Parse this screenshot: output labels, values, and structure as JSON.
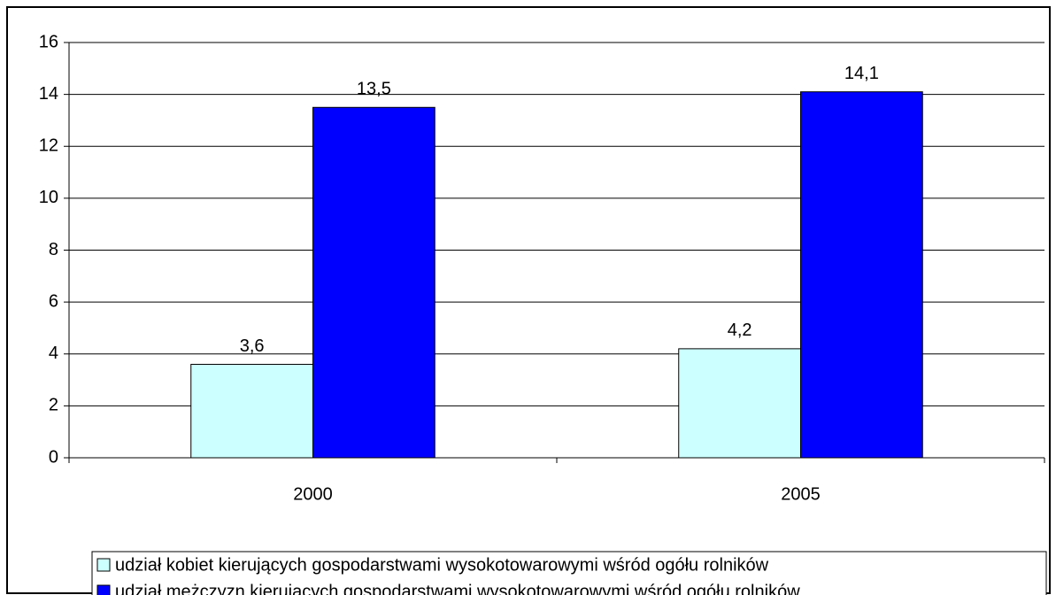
{
  "chart_data": {
    "type": "bar",
    "categories": [
      "2000",
      "2005"
    ],
    "series": [
      {
        "name": "udział kobiet kierujących gospodarstwami wysokotowarowymi wśród ogółu rolników",
        "color": "#ccffff",
        "values": [
          3.6,
          4.2
        ],
        "value_labels": [
          "3,6",
          "4,2"
        ]
      },
      {
        "name": "udział mężczyzn kierujących gospodarstwami wysokotowarowymi wśród ogółu rolników",
        "color": "#0000ff",
        "values": [
          13.5,
          14.1
        ],
        "value_labels": [
          "13,5",
          "14,1"
        ]
      }
    ],
    "ylim": [
      0,
      16
    ],
    "yticks": [
      0,
      2,
      4,
      6,
      8,
      10,
      12,
      14,
      16
    ],
    "grid": true
  }
}
